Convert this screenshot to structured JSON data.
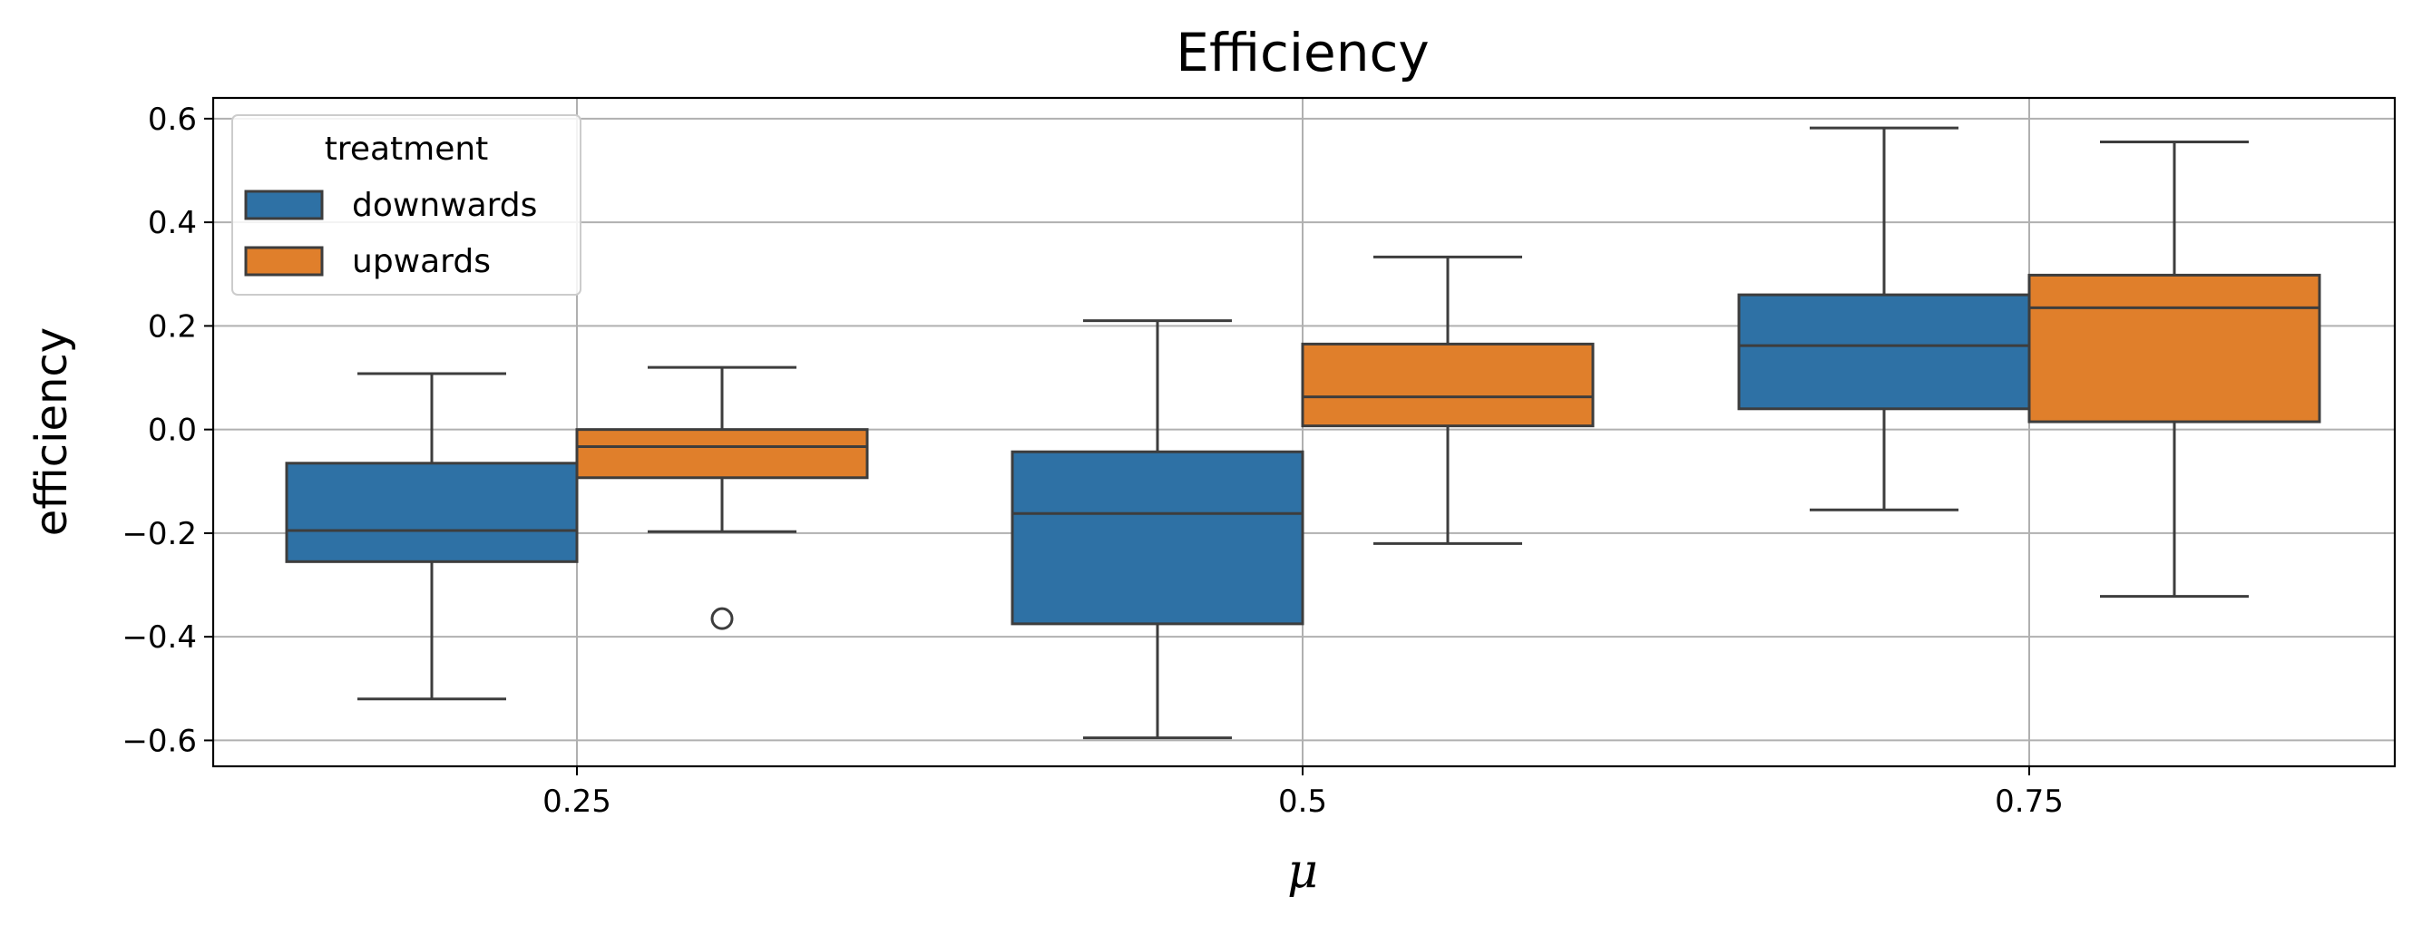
{
  "chart_data": {
    "type": "box",
    "title": "Efficiency",
    "xlabel": "μ",
    "ylabel": "efficiency",
    "categories": [
      "0.25",
      "0.5",
      "0.75"
    ],
    "ylim": [
      -0.65,
      0.64
    ],
    "yticks": [
      -0.6,
      -0.4,
      -0.2,
      0.0,
      0.2,
      0.4,
      0.6
    ],
    "ytick_labels": [
      "−0.6",
      "−0.4",
      "−0.2",
      "0.0",
      "0.2",
      "0.4",
      "0.6"
    ],
    "grid": true,
    "legend": {
      "title": "treatment",
      "position": "top-left"
    },
    "series": [
      {
        "name": "downwards",
        "color": "#2e71a5",
        "boxes": [
          {
            "whislo": -0.52,
            "q1": -0.255,
            "med": -0.195,
            "q3": -0.065,
            "whishi": 0.108,
            "fliers": []
          },
          {
            "whislo": -0.595,
            "q1": -0.375,
            "med": -0.162,
            "q3": -0.043,
            "whishi": 0.21,
            "fliers": []
          },
          {
            "whislo": -0.155,
            "q1": 0.04,
            "med": 0.162,
            "q3": 0.26,
            "whishi": 0.582,
            "fliers": []
          }
        ]
      },
      {
        "name": "upwards",
        "color": "#e07f2b",
        "boxes": [
          {
            "whislo": -0.197,
            "q1": -0.093,
            "med": -0.033,
            "q3": 0.0,
            "whishi": 0.12,
            "fliers": [
              -0.365
            ]
          },
          {
            "whislo": -0.22,
            "q1": 0.007,
            "med": 0.063,
            "q3": 0.165,
            "whishi": 0.333,
            "fliers": []
          },
          {
            "whislo": -0.322,
            "q1": 0.015,
            "med": 0.235,
            "q3": 0.298,
            "whishi": 0.555,
            "fliers": []
          }
        ]
      }
    ]
  }
}
